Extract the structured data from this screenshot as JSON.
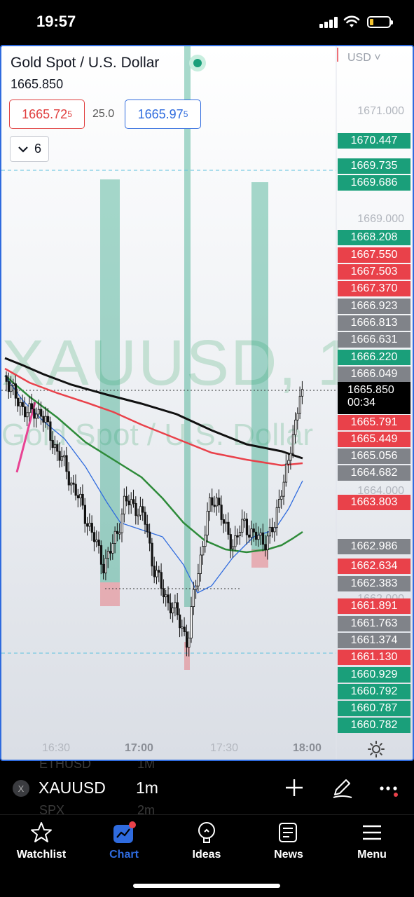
{
  "status_bar": {
    "time": "19:57"
  },
  "chart": {
    "symbol_title": "Gold Spot / U.S. Dollar",
    "last_price": "1665.850",
    "bid": {
      "main": "1665.72",
      "sup": "5"
    },
    "spread": "25.0",
    "ask": {
      "main": "1665.97",
      "sup": "5"
    },
    "indicators_count": "6",
    "currency": "USD",
    "watermark_symbol": "XAUUSD, 1",
    "watermark_name": "Gold Spot / U.S. Dollar",
    "axis_ticks": [
      "1671.000",
      "1669.000",
      "1664.000",
      "1662.000"
    ],
    "price_tags": [
      {
        "value": "1670.447",
        "color": "green"
      },
      {
        "value": "1669.735",
        "color": "green"
      },
      {
        "value": "1669.686",
        "color": "green"
      },
      {
        "value": "1668.208",
        "color": "green"
      },
      {
        "value": "1667.550",
        "color": "red"
      },
      {
        "value": "1667.503",
        "color": "red"
      },
      {
        "value": "1667.370",
        "color": "red"
      },
      {
        "value": "1666.923",
        "color": "gray"
      },
      {
        "value": "1666.813",
        "color": "gray"
      },
      {
        "value": "1666.631",
        "color": "gray"
      },
      {
        "value": "1666.220",
        "color": "green"
      },
      {
        "value": "1666.049",
        "color": "gray"
      },
      {
        "value": "1665.791",
        "color": "red"
      },
      {
        "value": "1665.449",
        "color": "red"
      },
      {
        "value": "1665.056",
        "color": "gray"
      },
      {
        "value": "1664.682",
        "color": "gray"
      },
      {
        "value": "1663.803",
        "color": "red"
      },
      {
        "value": "1662.986",
        "color": "gray"
      },
      {
        "value": "1662.634",
        "color": "red"
      },
      {
        "value": "1662.383",
        "color": "gray"
      },
      {
        "value": "1661.891",
        "color": "red"
      },
      {
        "value": "1661.763",
        "color": "gray"
      },
      {
        "value": "1661.374",
        "color": "gray"
      },
      {
        "value": "1661.130",
        "color": "red"
      },
      {
        "value": "1660.929",
        "color": "green"
      },
      {
        "value": "1660.792",
        "color": "green"
      },
      {
        "value": "1660.787",
        "color": "green"
      },
      {
        "value": "1660.782",
        "color": "green"
      }
    ],
    "current_price": "1665.850",
    "countdown": "00:34",
    "time_labels": [
      "16:30",
      "17:00",
      "17:30",
      "18:00"
    ],
    "colors": {
      "up": "#1a9f7a",
      "down": "#e9414a",
      "neutral": "#808389",
      "accent": "#2f6bde"
    }
  },
  "toolbar": {
    "ghost_top": "ETHUSD",
    "ghost_top_interval": "1M",
    "symbol": "XAUUSD",
    "interval": "1m",
    "ghost_bottom": "SPX",
    "ghost_bottom_interval": "2m"
  },
  "nav": {
    "items": [
      {
        "label": "Watchlist",
        "icon": "star-icon"
      },
      {
        "label": "Chart",
        "icon": "chart-icon"
      },
      {
        "label": "Ideas",
        "icon": "lightbulb-icon"
      },
      {
        "label": "News",
        "icon": "news-icon"
      },
      {
        "label": "Menu",
        "icon": "menu-icon"
      }
    ]
  }
}
